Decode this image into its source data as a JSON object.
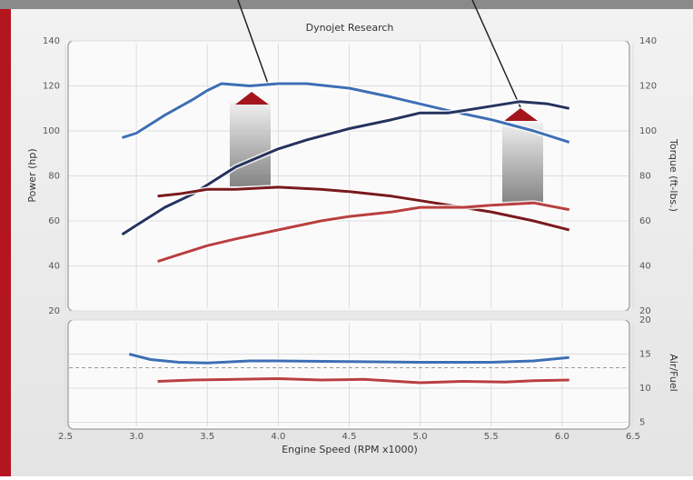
{
  "chart_data": [
    {
      "type": "line",
      "title": "Dynojet Research",
      "ylabel": "Power (hp)",
      "y2label": "Torque (ft-lbs.)",
      "xlim": [
        2.5,
        6.5
      ],
      "ylim": [
        20,
        140
      ],
      "yticks": [
        20,
        40,
        60,
        80,
        100,
        120,
        140
      ],
      "y2lim": [
        20,
        140
      ],
      "y2ticks": [
        20,
        40,
        60,
        80,
        100,
        120,
        140
      ],
      "grid": true,
      "series": [
        {
          "color": "#3e6fb5",
          "axis": "y2",
          "x": [
            2.9,
            3.0,
            3.2,
            3.4,
            3.5,
            3.6,
            3.8,
            4.0,
            4.2,
            4.5,
            4.8,
            5.0,
            5.2,
            5.5,
            5.8,
            6.05
          ],
          "values": [
            97,
            99,
            107,
            114,
            118,
            121,
            120,
            121,
            121,
            119,
            115,
            112,
            109,
            105,
            100,
            95
          ]
        },
        {
          "color": "#27335e",
          "x": [
            2.9,
            3.0,
            3.2,
            3.4,
            3.5,
            3.7,
            4.0,
            4.2,
            4.5,
            4.8,
            5.0,
            5.2,
            5.5,
            5.7,
            5.9,
            6.05
          ],
          "values": [
            54,
            58,
            66,
            72,
            76,
            84,
            92,
            96,
            101,
            105,
            108,
            108,
            111,
            113,
            112,
            110
          ]
        },
        {
          "color": "#7a1a1e",
          "axis": "y2",
          "x": [
            3.15,
            3.3,
            3.5,
            3.7,
            4.0,
            4.3,
            4.5,
            4.8,
            5.0,
            5.3,
            5.5,
            5.8,
            6.05
          ],
          "values": [
            71,
            72,
            74,
            74,
            75,
            74,
            73,
            71,
            69,
            66,
            64,
            60,
            56
          ]
        },
        {
          "color": "#b8403f",
          "x": [
            3.15,
            3.3,
            3.5,
            3.7,
            4.0,
            4.3,
            4.5,
            4.8,
            5.0,
            5.3,
            5.5,
            5.8,
            6.05
          ],
          "values": [
            42,
            45,
            49,
            52,
            56,
            60,
            62,
            64,
            66,
            66,
            67,
            68,
            65
          ]
        }
      ]
    },
    {
      "type": "line",
      "xlabel": "Engine Speed (RPM x1000)",
      "y2label": "Air/Fuel",
      "xlim": [
        2.5,
        6.5
      ],
      "xticks": [
        2.5,
        {
          "value": 3,
          "label": "3.0"
        },
        3.5,
        {
          "value": 4,
          "label": "4.0"
        },
        4.5,
        {
          "value": 5,
          "label": "5.0"
        },
        5.5,
        {
          "value": 6,
          "label": "6.0"
        },
        6.5
      ],
      "y2lim": [
        4,
        20
      ],
      "y2ticks": [
        5,
        10,
        15,
        20
      ],
      "hline": 13,
      "grid": true,
      "series": [
        {
          "color": "#3e6fb5",
          "axis": "y2",
          "x": [
            2.95,
            3.1,
            3.3,
            3.5,
            3.8,
            4.0,
            4.5,
            5.0,
            5.5,
            5.8,
            6.05
          ],
          "values": [
            15,
            14.2,
            13.8,
            13.7,
            14,
            14,
            13.9,
            13.8,
            13.8,
            14,
            14.5
          ]
        },
        {
          "color": "#b8403f",
          "axis": "y2",
          "x": [
            3.15,
            3.4,
            3.7,
            4.0,
            4.3,
            4.6,
            5.0,
            5.3,
            5.6,
            5.8,
            6.05
          ],
          "values": [
            11,
            11.2,
            11.3,
            11.4,
            11.2,
            11.3,
            10.8,
            11,
            10.9,
            11.1,
            11.2
          ]
        }
      ]
    }
  ]
}
